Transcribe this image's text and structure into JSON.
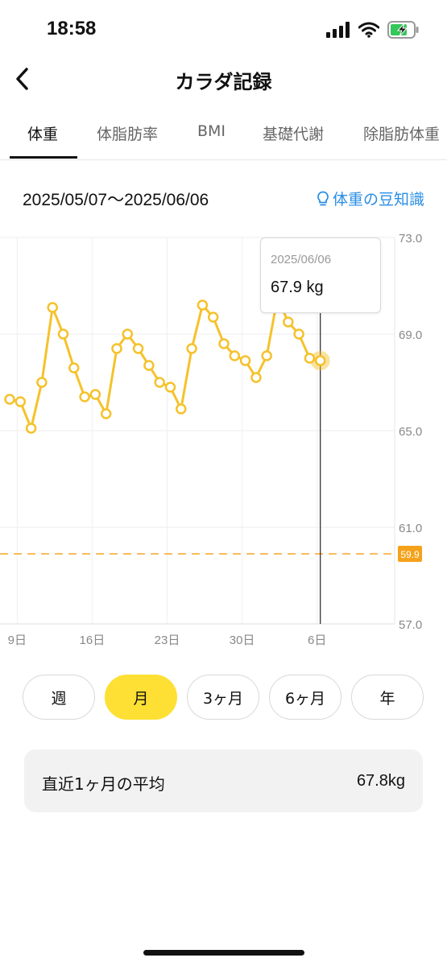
{
  "status": {
    "time": "18:58"
  },
  "nav": {
    "title": "カラダ記録",
    "back_icon": "chevron-left-icon"
  },
  "tabs": [
    {
      "label": "体重",
      "active": true
    },
    {
      "label": "体脂肪率",
      "active": false
    },
    {
      "label": "BMI",
      "active": false
    },
    {
      "label": "基礎代謝",
      "active": false
    },
    {
      "label": "除脂肪体重",
      "active": false
    }
  ],
  "date_range": "2025/05/07〜2025/06/06",
  "tip_link": {
    "label": "体重の豆知識",
    "icon": "lightbulb-icon"
  },
  "tooltip": {
    "date": "2025/06/06",
    "value": "67.9 kg"
  },
  "chart_data": {
    "type": "line",
    "x": [
      "5/8",
      "5/9",
      "5/10",
      "5/11",
      "5/12",
      "5/13",
      "5/14",
      "5/15",
      "5/16",
      "5/17",
      "5/18",
      "5/19",
      "5/20",
      "5/21",
      "5/22",
      "5/23",
      "5/24",
      "5/25",
      "5/26",
      "5/27",
      "5/28",
      "5/29",
      "5/30",
      "5/31",
      "6/1",
      "6/2",
      "6/3",
      "6/4",
      "6/5",
      "6/6"
    ],
    "values": [
      66.3,
      66.2,
      65.1,
      67.0,
      70.1,
      69.0,
      67.6,
      66.4,
      66.5,
      65.7,
      68.4,
      69.0,
      68.4,
      67.7,
      67.0,
      66.8,
      65.9,
      68.4,
      70.2,
      69.7,
      68.6,
      68.1,
      67.9,
      67.2,
      68.1,
      70.5,
      69.5,
      69.0,
      68.0,
      67.9
    ],
    "x_tick_labels": [
      "9日",
      "16日",
      "23日",
      "30日",
      "6日"
    ],
    "y_tick_labels": [
      "73.0",
      "69.0",
      "65.0",
      "61.0",
      "57.0"
    ],
    "ylim": [
      57.0,
      73.0
    ],
    "target_line": {
      "value": 59.9,
      "label": "59.9"
    },
    "selected_point": "6/6",
    "grid": true,
    "colors": {
      "line": "#f5c22b",
      "target": "#f5a623",
      "target_badge": "#f5a21b"
    }
  },
  "periods": [
    {
      "label": "週",
      "active": false
    },
    {
      "label": "月",
      "active": true
    },
    {
      "label": "3ヶ月",
      "active": false
    },
    {
      "label": "6ヶ月",
      "active": false
    },
    {
      "label": "年",
      "active": false
    }
  ],
  "average": {
    "label": "直近1ヶ月の平均",
    "value": "67.8kg"
  },
  "colors": {
    "accent": "#fde033",
    "link": "#2a8ee6"
  }
}
